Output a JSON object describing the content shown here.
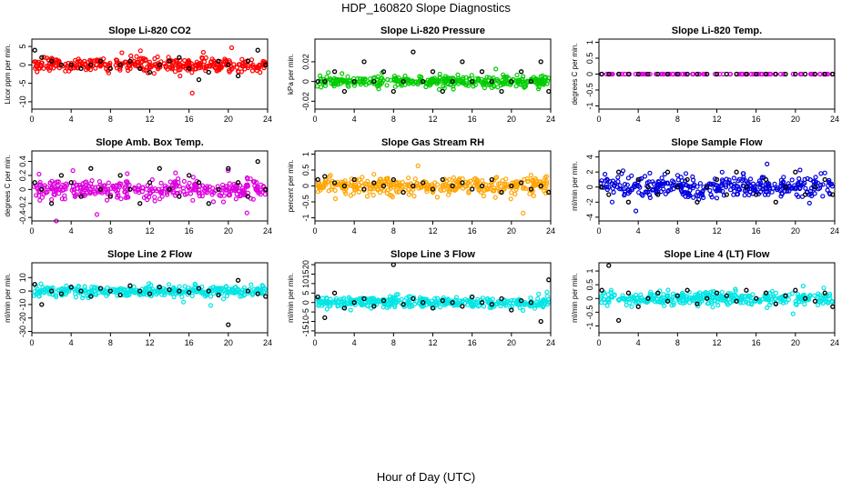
{
  "title": "HDP_160820  Slope Diagnostics",
  "xlabel": "Hour of Day (UTC)",
  "chart_data": [
    {
      "type": "scatter",
      "title": "Slope Li-820 CO2",
      "ylabel": "Licor ppm per min.",
      "xlim": [
        0,
        24
      ],
      "ylim": [
        -12,
        7
      ],
      "yticks": [
        -10,
        -5,
        0,
        5
      ],
      "xticks": [
        0,
        4,
        8,
        12,
        16,
        20,
        24
      ],
      "color": "#ff0000",
      "spread": 2.0,
      "x": [
        0.3,
        1.0,
        2.0,
        3.0,
        4.0,
        5.0,
        6.0,
        7.0,
        8.0,
        9.0,
        10.0,
        11.0,
        12.0,
        13.0,
        14.0,
        15.0,
        16.0,
        17.0,
        18.0,
        19.0,
        20.0,
        21.0,
        22.0,
        23.0,
        23.8
      ],
      "y": [
        4,
        2,
        1,
        0,
        0,
        -1,
        0,
        1,
        -1,
        0,
        1,
        -1,
        -2,
        0,
        1,
        2,
        -1,
        -4,
        -2,
        1,
        0,
        -3,
        1,
        4,
        0
      ]
    },
    {
      "type": "scatter",
      "title": "Slope Li-820 Pressure",
      "ylabel": "kPa per min.",
      "xlim": [
        0,
        24
      ],
      "ylim": [
        -0.028,
        0.043
      ],
      "yticks": [
        -0.02,
        0.0,
        0.02
      ],
      "xticks": [
        0,
        4,
        8,
        12,
        16,
        20,
        24
      ],
      "color": "#00cc00",
      "spread": 0.006,
      "x": [
        0.3,
        1.0,
        2.0,
        3.0,
        4.0,
        5.0,
        6.0,
        7.0,
        8.0,
        9.0,
        10.0,
        11.0,
        12.0,
        13.0,
        14.0,
        15.0,
        16.0,
        17.0,
        18.0,
        19.0,
        20.0,
        21.0,
        22.0,
        23.0,
        23.8
      ],
      "y": [
        0.0,
        0.0,
        0.01,
        -0.01,
        0.0,
        0.02,
        0.0,
        0.01,
        -0.01,
        0.0,
        0.03,
        0.0,
        0.01,
        -0.01,
        0.0,
        0.02,
        0.0,
        0.01,
        0.0,
        -0.01,
        0.0,
        0.01,
        0.0,
        0.02,
        -0.01
      ]
    },
    {
      "type": "scatter",
      "title": "Slope Li-820 Temp.",
      "ylabel": "degrees C per min.",
      "xlim": [
        0,
        24
      ],
      "ylim": [
        -1.1,
        1.1
      ],
      "yticks": [
        -1.0,
        -0.5,
        0.0,
        0.5,
        1.0
      ],
      "xticks": [
        0,
        4,
        8,
        12,
        16,
        20,
        24
      ],
      "color": "#dd00dd",
      "spread": 0.0,
      "x": [
        0.3,
        1.0,
        2.0,
        3.0,
        4.0,
        5.0,
        6.0,
        7.0,
        8.0,
        9.0,
        10.0,
        11.0,
        12.0,
        13.0,
        14.0,
        15.0,
        16.0,
        17.0,
        18.0,
        19.0,
        20.0,
        21.0,
        22.0,
        23.0,
        23.8
      ],
      "y": [
        0,
        0,
        0,
        0,
        0,
        0,
        0,
        0,
        0,
        0,
        0,
        0,
        0,
        0,
        0,
        0,
        0,
        0,
        0,
        0,
        0,
        0,
        0,
        0,
        0
      ]
    },
    {
      "type": "scatter",
      "title": "Slope Amb. Box Temp.",
      "ylabel": "degrees C per min.",
      "xlim": [
        0,
        24
      ],
      "ylim": [
        -0.45,
        0.55
      ],
      "yticks": [
        -0.4,
        -0.2,
        0.0,
        0.2,
        0.4
      ],
      "xticks": [
        0,
        4,
        8,
        12,
        16,
        20,
        24
      ],
      "color": "#dd00dd",
      "spread": 0.15,
      "x": [
        0.3,
        1.0,
        2.0,
        3.0,
        4.0,
        5.0,
        6.0,
        7.0,
        8.0,
        9.0,
        10.0,
        11.0,
        12.0,
        13.0,
        14.0,
        15.0,
        16.0,
        17.0,
        18.0,
        19.0,
        20.0,
        21.0,
        22.0,
        23.0,
        23.8
      ],
      "y": [
        0.1,
        0.0,
        -0.2,
        0.2,
        0.1,
        -0.1,
        0.3,
        0.0,
        -0.1,
        0.2,
        0.0,
        -0.2,
        0.1,
        0.3,
        0.0,
        -0.1,
        0.2,
        0.1,
        -0.2,
        0.0,
        0.3,
        0.1,
        -0.1,
        0.4,
        0.0
      ]
    },
    {
      "type": "scatter",
      "title": "Slope Gas Stream RH",
      "ylabel": "percent per min.",
      "xlim": [
        0,
        24
      ],
      "ylim": [
        -1.1,
        1.1
      ],
      "yticks": [
        -1.0,
        -0.5,
        0.0,
        0.5,
        1.0
      ],
      "xticks": [
        0,
        4,
        8,
        12,
        16,
        20,
        24
      ],
      "color": "#ffa500",
      "spread": 0.3,
      "x": [
        0.3,
        1.0,
        2.0,
        3.0,
        4.0,
        5.0,
        6.0,
        7.0,
        8.0,
        9.0,
        10.0,
        11.0,
        12.0,
        13.0,
        14.0,
        15.0,
        16.0,
        17.0,
        18.0,
        19.0,
        20.0,
        21.0,
        22.0,
        23.0,
        23.8
      ],
      "y": [
        0.2,
        0.3,
        0.1,
        0.0,
        0.2,
        -0.1,
        0.1,
        0.0,
        0.2,
        -0.2,
        0.0,
        0.1,
        -0.1,
        0.2,
        0.0,
        0.1,
        -0.1,
        0.0,
        0.2,
        -0.2,
        0.0,
        0.1,
        -0.1,
        0.0,
        -0.2
      ]
    },
    {
      "type": "scatter",
      "title": "Slope Sample Flow",
      "ylabel": "ml/min per min.",
      "xlim": [
        0,
        24
      ],
      "ylim": [
        -4.5,
        4.8
      ],
      "yticks": [
        -4,
        -2,
        0,
        2,
        4
      ],
      "xticks": [
        0,
        4,
        8,
        12,
        16,
        20,
        24
      ],
      "color": "#0000dd",
      "spread": 1.6,
      "x": [
        0.3,
        1.0,
        2.0,
        3.0,
        4.0,
        5.0,
        6.0,
        7.0,
        8.0,
        9.0,
        10.0,
        11.0,
        12.0,
        13.0,
        14.0,
        15.0,
        16.0,
        17.0,
        18.0,
        19.0,
        20.0,
        21.0,
        22.0,
        23.0,
        23.8
      ],
      "y": [
        0,
        -1,
        2,
        -2,
        1,
        0,
        -1,
        2,
        0,
        1,
        -2,
        0,
        1,
        -1,
        2,
        0,
        -1,
        1,
        -2,
        0,
        2,
        -1,
        0,
        1,
        -1
      ]
    },
    {
      "type": "scatter",
      "title": "Slope Line 2 Flow",
      "ylabel": "ml/min per min.",
      "xlim": [
        0,
        24
      ],
      "ylim": [
        -31,
        21
      ],
      "yticks": [
        -30,
        -20,
        -10,
        0,
        10
      ],
      "xticks": [
        0,
        4,
        8,
        12,
        16,
        20,
        24
      ],
      "color": "#00e5e5",
      "spread": 4.0,
      "x": [
        0.3,
        1.0,
        2.0,
        3.0,
        4.0,
        5.0,
        6.0,
        7.0,
        8.0,
        9.0,
        10.0,
        11.0,
        12.0,
        13.0,
        14.0,
        15.0,
        16.0,
        17.0,
        18.0,
        19.0,
        20.0,
        21.0,
        22.0,
        23.0,
        23.8
      ],
      "y": [
        5,
        -10,
        0,
        -2,
        3,
        0,
        -4,
        2,
        0,
        -3,
        4,
        0,
        -2,
        3,
        1,
        0,
        -1,
        2,
        0,
        -3,
        -25,
        8,
        0,
        -2,
        -4
      ]
    },
    {
      "type": "scatter",
      "title": "Slope Line 3 Flow",
      "ylabel": "ml/min per min.",
      "xlim": [
        0,
        24
      ],
      "ylim": [
        -16,
        21
      ],
      "yticks": [
        -15,
        -10,
        -5,
        0,
        5,
        10,
        15,
        20
      ],
      "xticks": [
        0,
        4,
        8,
        12,
        16,
        20,
        24
      ],
      "color": "#00e5e5",
      "spread": 3.0,
      "x": [
        0.3,
        1.0,
        2.0,
        3.0,
        4.0,
        5.0,
        6.0,
        7.0,
        8.0,
        9.0,
        10.0,
        11.0,
        12.0,
        13.0,
        14.0,
        15.0,
        16.0,
        17.0,
        18.0,
        19.0,
        20.0,
        21.0,
        22.0,
        23.0,
        23.8
      ],
      "y": [
        3,
        -8,
        5,
        -3,
        0,
        2,
        -2,
        1,
        20,
        -1,
        2,
        0,
        -3,
        1,
        0,
        -2,
        3,
        0,
        -1,
        2,
        -4,
        1,
        0,
        -10,
        12
      ]
    },
    {
      "type": "scatter",
      "title": "Slope Line 4 (LT) Flow",
      "ylabel": "ml/min per min.",
      "xlim": [
        0,
        24
      ],
      "ylim": [
        -1.25,
        1.3
      ],
      "yticks": [
        -1.0,
        -0.5,
        0.0,
        0.5,
        1.0
      ],
      "xticks": [
        0,
        4,
        8,
        12,
        16,
        20,
        24
      ],
      "color": "#00e5e5",
      "spread": 0.25,
      "x": [
        0.3,
        1.0,
        2.0,
        3.0,
        4.0,
        5.0,
        6.0,
        7.0,
        8.0,
        9.0,
        10.0,
        11.0,
        12.0,
        13.0,
        14.0,
        15.0,
        16.0,
        17.0,
        18.0,
        19.0,
        20.0,
        21.0,
        22.0,
        23.0,
        23.8
      ],
      "y": [
        0.3,
        1.2,
        -0.8,
        0.2,
        -0.3,
        0.0,
        0.2,
        -0.1,
        0.1,
        0.3,
        -0.2,
        0.0,
        0.2,
        0.1,
        -0.1,
        0.3,
        0.0,
        0.2,
        -0.2,
        0.1,
        0.3,
        0.0,
        -0.1,
        0.2,
        -0.3
      ]
    }
  ]
}
